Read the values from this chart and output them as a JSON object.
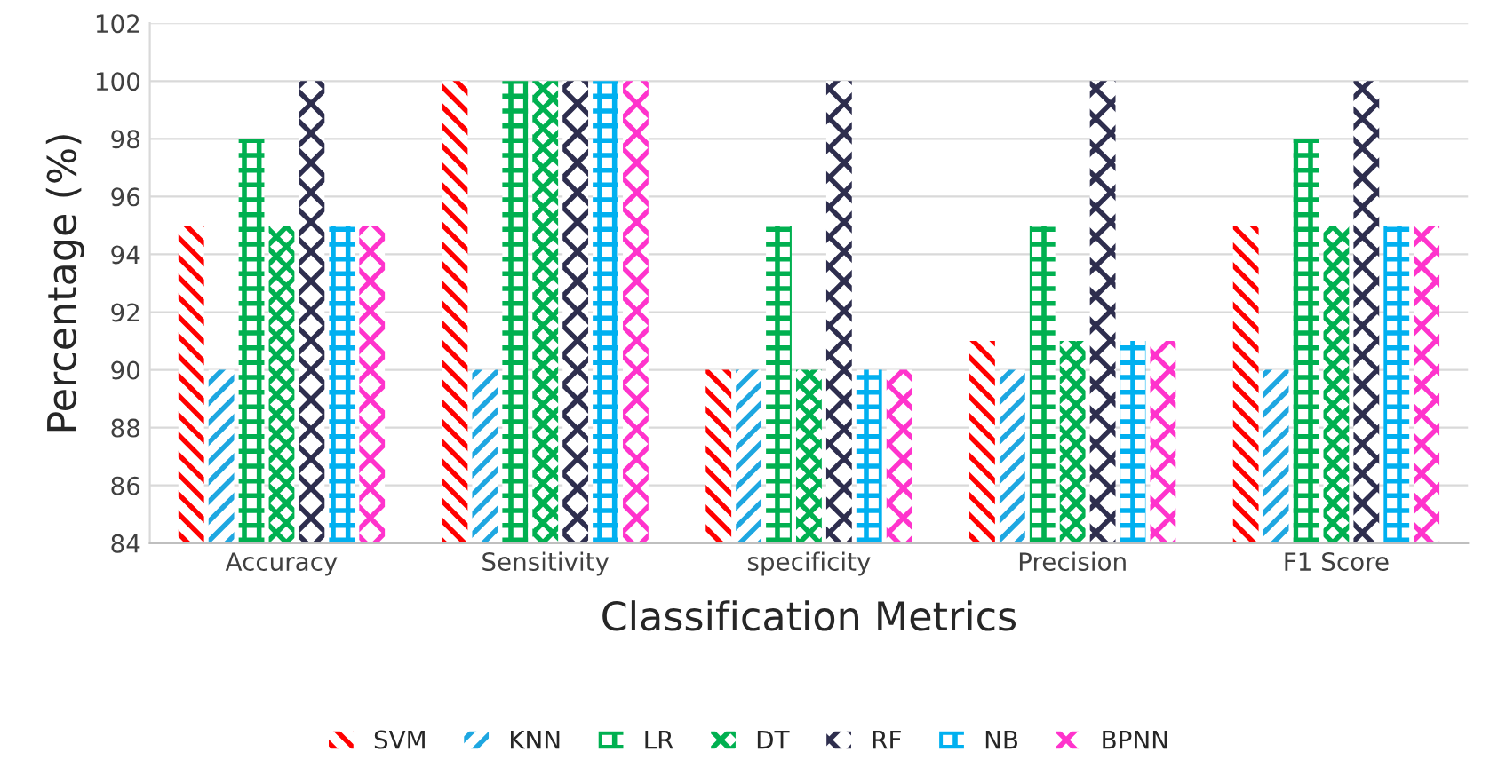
{
  "chart_data": {
    "type": "bar",
    "xlabel": "Classification Metrics",
    "ylabel": "Percentage (%)",
    "categories": [
      "Accuracy",
      "Sensitivity",
      "specificity",
      "Precision",
      "F1 Score"
    ],
    "series": [
      {
        "name": "SVM",
        "color": "#ff0000",
        "values": [
          95,
          100,
          90,
          91,
          95
        ]
      },
      {
        "name": "KNN",
        "color": "#1ea7e1",
        "values": [
          90,
          90,
          90,
          90,
          90
        ]
      },
      {
        "name": "LR",
        "color": "#00b050",
        "values": [
          98,
          100,
          95,
          95,
          98
        ]
      },
      {
        "name": "DT",
        "color": "#00b050",
        "values": [
          95,
          100,
          90,
          91,
          95
        ]
      },
      {
        "name": "RF",
        "color": "#2e2e4e",
        "values": [
          100,
          100,
          100,
          100,
          100
        ]
      },
      {
        "name": "NB",
        "color": "#00b0f0",
        "values": [
          95,
          100,
          90,
          91,
          95
        ]
      },
      {
        "name": "BPNN",
        "color": "#ff33cc",
        "values": [
          95,
          100,
          90,
          91,
          95
        ]
      }
    ],
    "ylim": [
      84,
      102
    ],
    "yticks": [
      84,
      86,
      88,
      90,
      92,
      94,
      96,
      98,
      100,
      102
    ],
    "grid": "y",
    "legend": "bottom"
  }
}
